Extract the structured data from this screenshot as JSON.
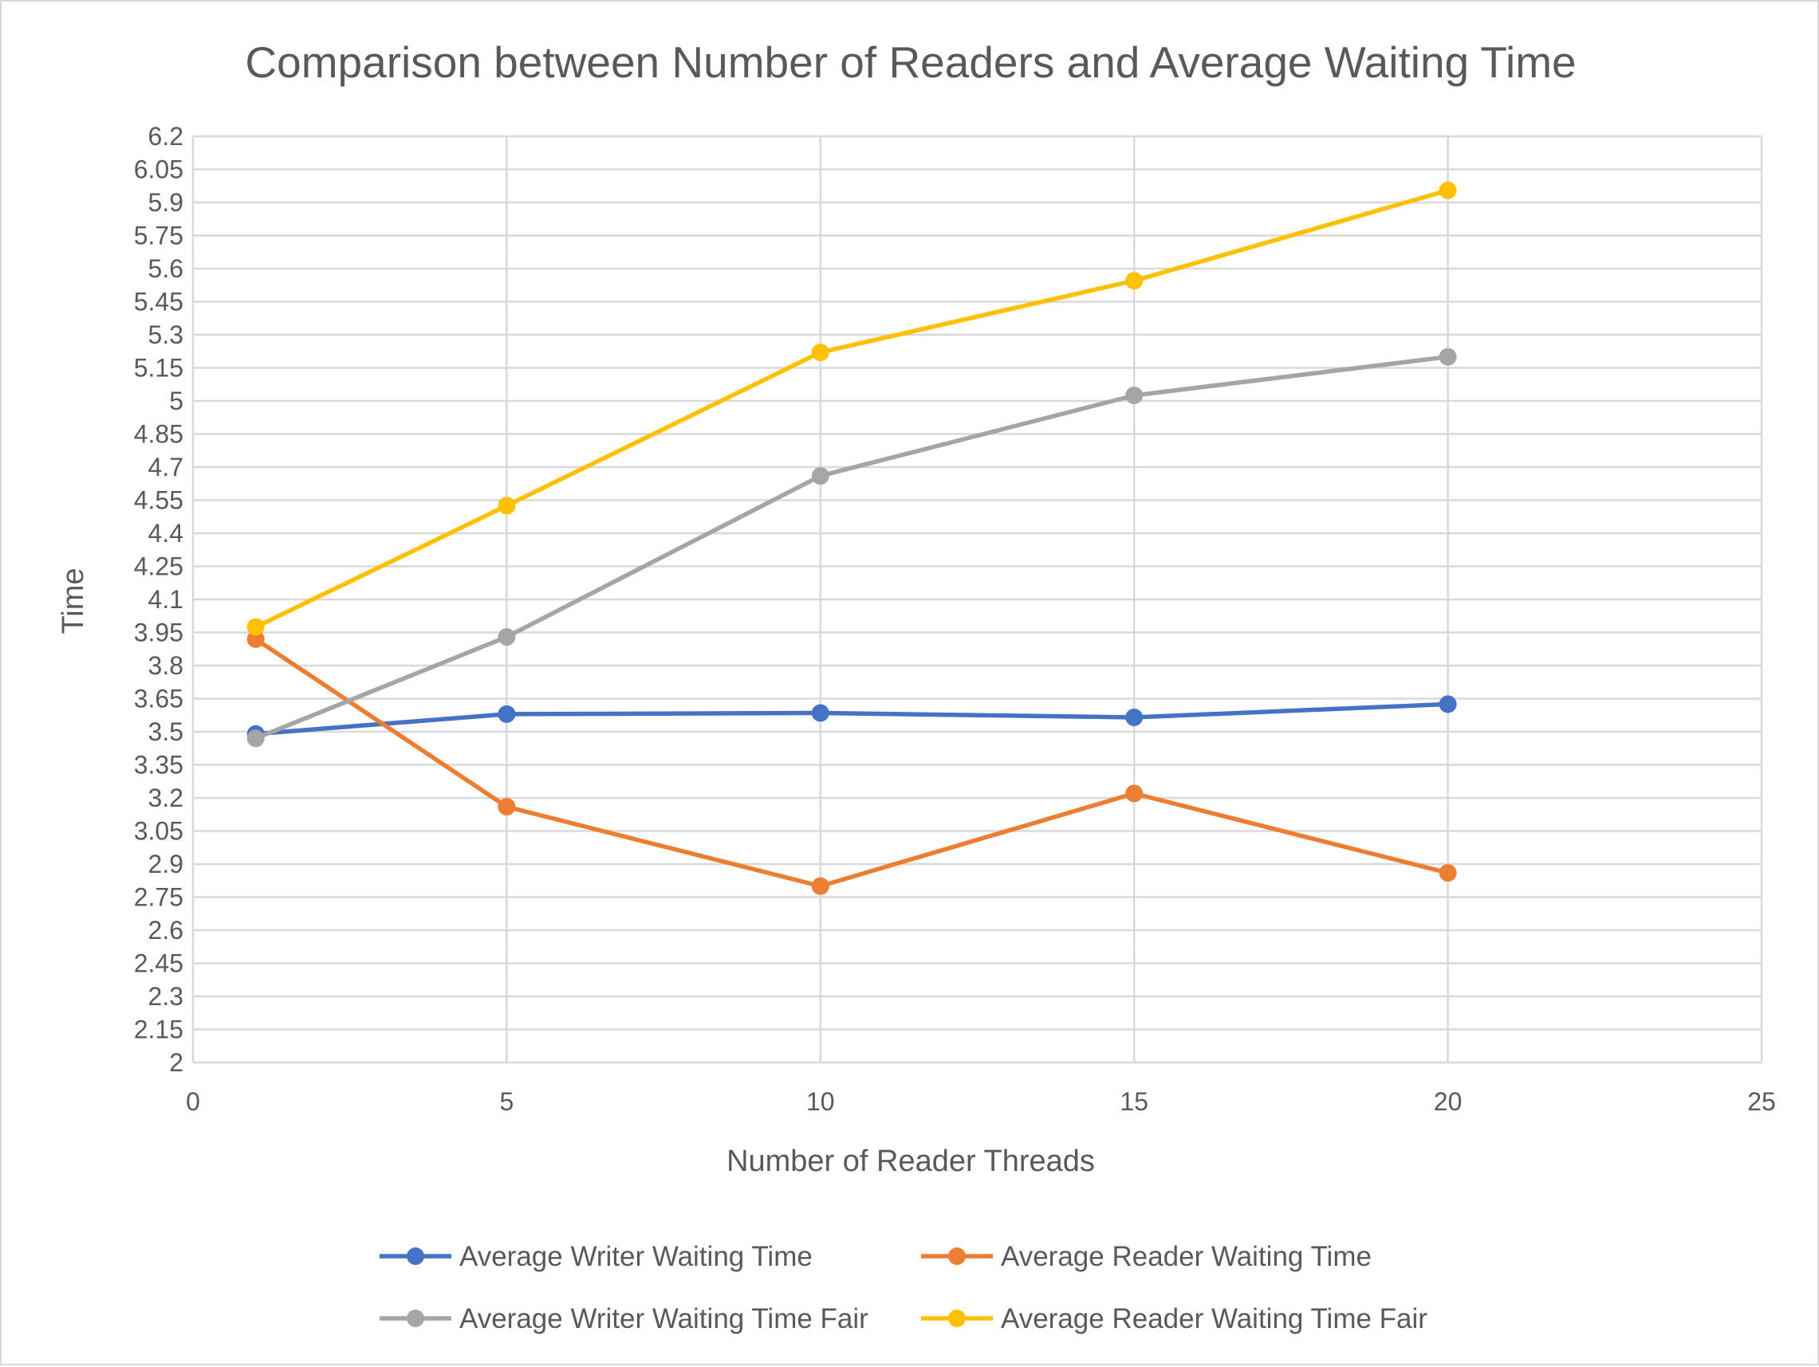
{
  "chart_data": {
    "type": "line",
    "title": "Comparison between Number of Readers and Average Waiting Time",
    "xlabel": "Number of Reader Threads",
    "ylabel": "Time",
    "xlim": [
      0,
      25
    ],
    "ylim": [
      2,
      6.2
    ],
    "xticks": [
      "0",
      "5",
      "10",
      "15",
      "20",
      "25"
    ],
    "yticks": [
      "2",
      "2.15",
      "2.3",
      "2.45",
      "2.6",
      "2.75",
      "2.9",
      "3.05",
      "3.2",
      "3.35",
      "3.5",
      "3.65",
      "3.8",
      "3.95",
      "4.1",
      "4.25",
      "4.4",
      "4.55",
      "4.7",
      "4.85",
      "5",
      "5.15",
      "5.3",
      "5.45",
      "5.6",
      "5.75",
      "5.9",
      "6.05",
      "6.2"
    ],
    "grid": true,
    "legend_position": "bottom",
    "x": [
      1,
      5,
      10,
      15,
      20
    ],
    "series": [
      {
        "name": "Average Writer Waiting Time",
        "color": "#4472c4",
        "values": [
          3.49,
          3.58,
          3.585,
          3.565,
          3.625
        ]
      },
      {
        "name": "Average Reader Waiting Time",
        "color": "#ed7d31",
        "values": [
          3.92,
          3.16,
          2.8,
          3.22,
          2.86
        ]
      },
      {
        "name": "Average Writer Waiting Time Fair",
        "color": "#a5a5a5",
        "values": [
          3.47,
          3.93,
          4.66,
          5.025,
          5.2
        ]
      },
      {
        "name": "Average Reader Waiting Time Fair",
        "color": "#ffc000",
        "values": [
          3.975,
          4.525,
          5.22,
          5.545,
          5.955
        ]
      }
    ]
  }
}
